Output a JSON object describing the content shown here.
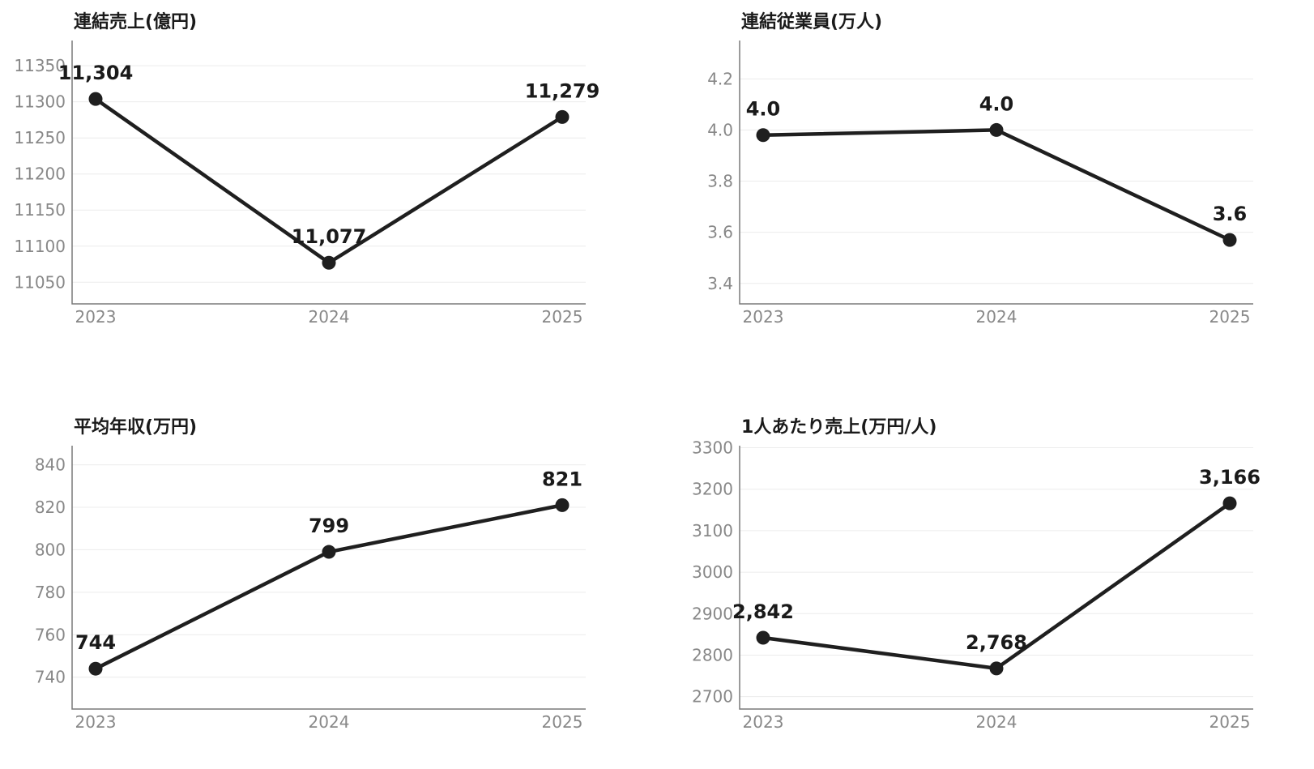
{
  "chart_data": [
    {
      "type": "line",
      "title": "連結売上(億円)",
      "categories": [
        "2023",
        "2024",
        "2025"
      ],
      "values": [
        11304,
        11077,
        11279
      ],
      "labels": [
        "11,304",
        "11,077",
        "11,279"
      ],
      "yticks": [
        "11050",
        "11100",
        "11150",
        "11200",
        "11250",
        "11300",
        "11350"
      ],
      "ylim": [
        11020,
        11385
      ],
      "grid": true,
      "color": "#1f1f1f"
    },
    {
      "type": "line",
      "title": "連結従業員(万人)",
      "categories": [
        "2023",
        "2024",
        "2025"
      ],
      "values": [
        3.98,
        4.0,
        3.57
      ],
      "labels": [
        "4.0",
        "4.0",
        "3.6"
      ],
      "yticks": [
        "3.4",
        "3.6",
        "3.8",
        "4.0",
        "4.2"
      ],
      "ylim": [
        3.32,
        4.35
      ],
      "grid": true,
      "color": "#1f1f1f"
    },
    {
      "type": "line",
      "title": "平均年収(万円)",
      "categories": [
        "2023",
        "2024",
        "2025"
      ],
      "values": [
        744,
        799,
        821
      ],
      "labels": [
        "744",
        "799",
        "821"
      ],
      "yticks": [
        "740",
        "760",
        "780",
        "800",
        "820",
        "840"
      ],
      "ylim": [
        725,
        849
      ],
      "grid": true,
      "color": "#1f1f1f"
    },
    {
      "type": "line",
      "title": "1人あたり売上(万円/人)",
      "categories": [
        "2023",
        "2024",
        "2025"
      ],
      "values": [
        2842,
        2768,
        3166
      ],
      "labels": [
        "2,842",
        "2,768",
        "3,166"
      ],
      "yticks": [
        "2700",
        "2800",
        "2900",
        "3000",
        "3100",
        "3200",
        "3300"
      ],
      "ylim": [
        2670,
        3305
      ],
      "grid": true,
      "color": "#1f1f1f"
    }
  ]
}
